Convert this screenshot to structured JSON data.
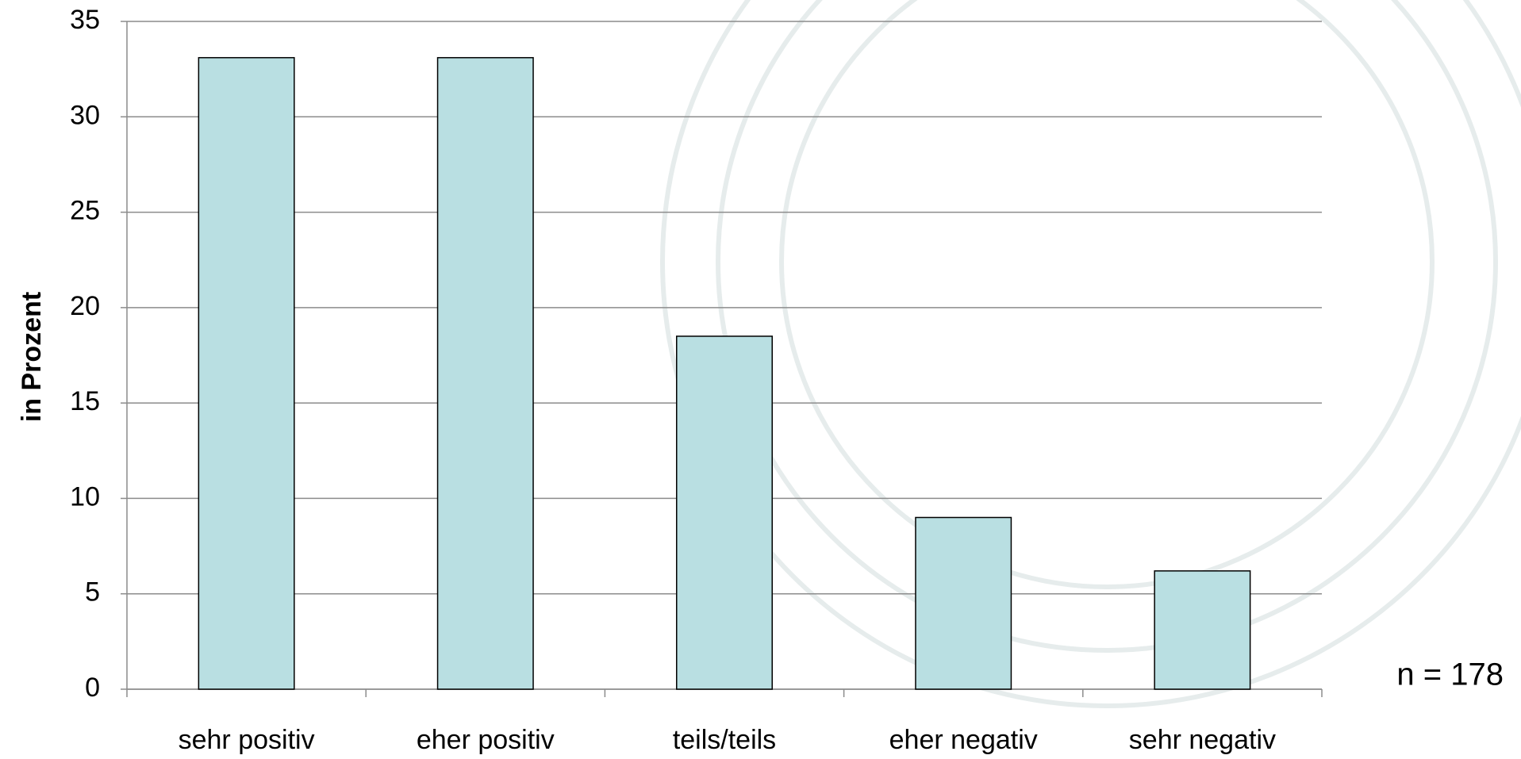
{
  "chart_data": {
    "type": "bar",
    "y_axis_label": "in Prozent",
    "annotation": "n = 178",
    "categories": [
      "sehr positiv",
      "eher positiv",
      "teils/teils",
      "eher negativ",
      "sehr negativ"
    ],
    "values": [
      33.1,
      33.1,
      18.5,
      9.0,
      6.2
    ],
    "color": "#b9dfe2",
    "ylim": [
      0,
      35
    ],
    "yticks": [
      0,
      5,
      10,
      15,
      20,
      25,
      30,
      35
    ],
    "grid": true
  }
}
